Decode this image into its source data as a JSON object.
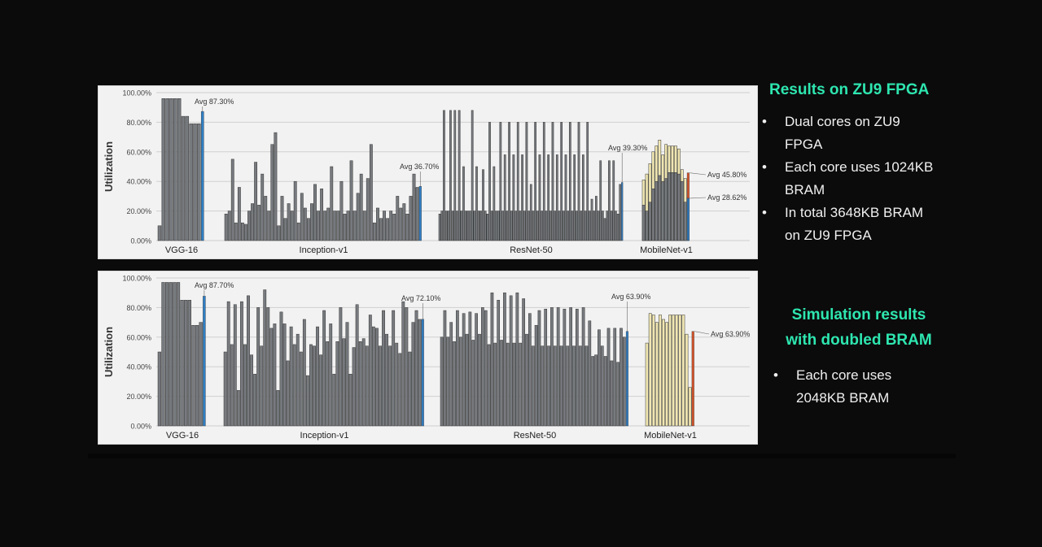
{
  "colors": {
    "gray": "#777a7e",
    "cream": "#f0e6b2",
    "blue": "#2f7fc6",
    "orange": "#d9552a",
    "tick": "#555555",
    "grid": "#cfcfcf"
  },
  "chart_data": [
    {
      "type": "bar",
      "title": "",
      "ylabel": "Utilization",
      "ylim": [
        0,
        100
      ],
      "yticks": [
        "0.00%",
        "20.00%",
        "40.00%",
        "60.00%",
        "80.00%",
        "100.00%"
      ],
      "groups": [
        {
          "name": "VGG-16",
          "values": [
            10,
            96,
            96,
            96,
            96,
            96,
            84,
            84,
            79,
            79,
            79
          ],
          "avg": 87.3,
          "avg_label": "Avg 87.30%"
        },
        {
          "name": "Inception-v1",
          "values": [
            18,
            20,
            55,
            12,
            36,
            12,
            11,
            20,
            25,
            53,
            24,
            45,
            30,
            20,
            65,
            73,
            10,
            30,
            15,
            25,
            20,
            40,
            12,
            32,
            22,
            15,
            25,
            38,
            20,
            35,
            20,
            22,
            50,
            20,
            20,
            40,
            18,
            20,
            54,
            20,
            32,
            45,
            20,
            42,
            65,
            12,
            22,
            15,
            20,
            15,
            20,
            18,
            30,
            22,
            25,
            18,
            30,
            45,
            36
          ],
          "avg": 36.7,
          "avg_label": "Avg 36.70%"
        },
        {
          "name": "ResNet-50",
          "values": [
            18,
            20,
            88,
            20,
            20,
            88,
            20,
            88,
            20,
            88,
            20,
            50,
            20,
            20,
            20,
            88,
            20,
            50,
            20,
            20,
            48,
            20,
            18,
            80,
            20,
            50,
            20,
            20,
            80,
            20,
            58,
            20,
            80,
            20,
            58,
            20,
            80,
            20,
            58,
            20,
            80,
            20,
            38,
            20,
            80,
            20,
            58,
            20,
            80,
            20,
            58,
            20,
            80,
            20,
            58,
            20,
            80,
            20,
            58,
            20,
            80,
            20,
            58,
            20,
            80,
            20,
            58,
            20,
            80,
            20,
            28,
            20,
            30,
            20,
            54,
            20,
            15,
            20,
            54,
            20,
            54,
            20,
            18,
            38
          ],
          "avg": 39.3,
          "avg_label": "Avg 39.30%"
        },
        {
          "name": "MobileNet-v1",
          "values": [
            41,
            45,
            52,
            60,
            64,
            68,
            58,
            65,
            64,
            64,
            64,
            62,
            48,
            42
          ],
          "bottom": [
            24,
            20,
            26,
            35,
            40,
            44,
            40,
            42,
            46,
            46,
            46,
            45,
            40,
            26
          ],
          "avg": 45.8,
          "avg_label": "Avg 45.80%",
          "avg2": 28.62,
          "avg2_label": "Avg 28.62%"
        }
      ]
    },
    {
      "type": "bar",
      "title": "",
      "ylabel": "Utilization",
      "ylim": [
        0,
        100
      ],
      "yticks": [
        "0.00%",
        "20.00%",
        "40.00%",
        "60.00%",
        "80.00%",
        "100.00%"
      ],
      "groups": [
        {
          "name": "VGG-16",
          "values": [
            50,
            97,
            97,
            97,
            97,
            97,
            85,
            85,
            85,
            68,
            68,
            70
          ],
          "avg": 87.7,
          "avg_label": "Avg 87.70%"
        },
        {
          "name": "Inception-v1",
          "values": [
            50,
            84,
            55,
            82,
            24,
            84,
            55,
            88,
            48,
            35,
            80,
            54,
            92,
            80,
            66,
            69,
            24,
            77,
            69,
            44,
            67,
            55,
            62,
            50,
            72,
            34,
            55,
            54,
            67,
            48,
            78,
            57,
            69,
            35,
            57,
            80,
            59,
            70,
            35,
            53,
            82,
            57,
            59,
            54,
            75,
            67,
            66,
            54,
            78,
            62,
            54,
            78,
            56,
            49,
            84,
            80,
            50,
            70,
            78,
            72
          ],
          "avg": 72.1,
          "avg_label": "Avg 72.10%"
        },
        {
          "name": "ResNet-50",
          "values": [
            60,
            78,
            60,
            70,
            57,
            78,
            60,
            76,
            62,
            77,
            58,
            76,
            62,
            80,
            78,
            55,
            90,
            56,
            85,
            58,
            90,
            56,
            88,
            56,
            90,
            56,
            86,
            62,
            76,
            54,
            68,
            78,
            54,
            79,
            54,
            80,
            54,
            80,
            54,
            79,
            54,
            80,
            54,
            79,
            54,
            80,
            54,
            71,
            47,
            48,
            65,
            54,
            47,
            66,
            44,
            66,
            43,
            66,
            60
          ],
          "avg": 63.9,
          "avg_label": "Avg 63.90%"
        },
        {
          "name": "MobileNet-v1",
          "values": [
            56,
            76,
            75,
            70,
            75,
            72,
            70,
            75,
            75,
            75,
            75,
            75,
            62,
            26
          ],
          "avg": 63.9,
          "avg_label": "Avg 63.90%"
        }
      ]
    }
  ],
  "right_panel_1": {
    "heading": "Results on ZU9 FPGA",
    "bullet_symbol": "•",
    "items": [
      {
        "line1": "Dual cores on ZU9",
        "line2": "FPGA"
      },
      {
        "line1": "Each core uses 1024KB",
        "line2": "BRAM"
      },
      {
        "line1": "In total 3648KB BRAM",
        "line2": "on ZU9 FPGA"
      }
    ]
  },
  "right_panel_2": {
    "heading_line1": "Simulation results",
    "heading_line2": "with doubled BRAM",
    "bullet_symbol": "•",
    "items": [
      {
        "line1": "Each core uses",
        "line2": "2048KB BRAM"
      }
    ]
  }
}
